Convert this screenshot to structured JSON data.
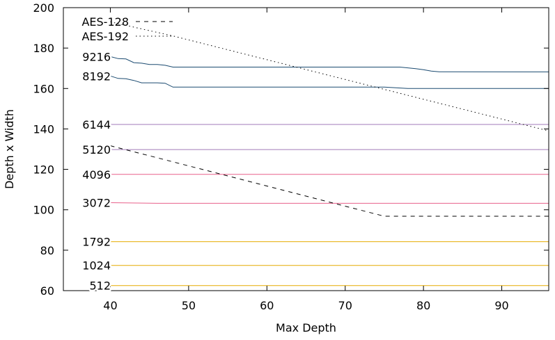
{
  "chart_data": {
    "type": "line",
    "title": "",
    "xlabel": "Max Depth",
    "ylabel": "Depth x Width",
    "xlim": [
      34,
      96
    ],
    "ylim": [
      60,
      200
    ],
    "xticks": [
      40,
      50,
      60,
      70,
      80,
      90
    ],
    "yticks": [
      60,
      80,
      100,
      120,
      140,
      160,
      180,
      200
    ],
    "grid": false,
    "legend": "top-left",
    "series": [
      {
        "name": "512",
        "color": "#e6ac00",
        "dash": "solid",
        "x": [
          40,
          96
        ],
        "y": [
          62.5,
          62.5
        ]
      },
      {
        "name": "1024",
        "color": "#e6ac00",
        "dash": "solid",
        "x": [
          40,
          96
        ],
        "y": [
          72.5,
          72.5
        ]
      },
      {
        "name": "1792",
        "color": "#e6ac00",
        "dash": "solid",
        "x": [
          40,
          96
        ],
        "y": [
          84.2,
          84.2
        ]
      },
      {
        "name": "3072",
        "color": "#e8608a",
        "dash": "solid",
        "x": [
          40,
          46,
          96
        ],
        "y": [
          103.5,
          103.2,
          103.2
        ]
      },
      {
        "name": "4096",
        "color": "#e8608a",
        "dash": "solid",
        "x": [
          40,
          96
        ],
        "y": [
          117.5,
          117.5
        ]
      },
      {
        "name": "5120",
        "color": "#a07ab8",
        "dash": "solid",
        "x": [
          40,
          96
        ],
        "y": [
          129.8,
          129.8
        ]
      },
      {
        "name": "6144",
        "color": "#a07ab8",
        "dash": "solid",
        "x": [
          40,
          96
        ],
        "y": [
          142.2,
          142.2
        ]
      },
      {
        "name": "8192",
        "color": "#1a4a70",
        "dash": "solid",
        "x": [
          40,
          41,
          42,
          43,
          44,
          46,
          47,
          48,
          75,
          78,
          96
        ],
        "y": [
          166.2,
          165,
          164.8,
          164,
          162.8,
          162.8,
          162.6,
          160.7,
          160.7,
          160.0,
          160.0
        ]
      },
      {
        "name": "9216",
        "color": "#1a4a70",
        "dash": "solid",
        "x": [
          40,
          41,
          42,
          43,
          44,
          45,
          46,
          47,
          48,
          77,
          79,
          80,
          81,
          82,
          96
        ],
        "y": [
          175.8,
          174.8,
          174.6,
          172.8,
          172.5,
          171.9,
          171.9,
          171.5,
          170.6,
          170.6,
          169.8,
          169.3,
          168.6,
          168.3,
          168.2
        ]
      },
      {
        "name": "AES-128",
        "color": "#000000",
        "dash": "dashed",
        "x": [
          40,
          75,
          96
        ],
        "y": [
          131.7,
          96.8,
          96.8
        ]
      },
      {
        "name": "AES-192",
        "color": "#000000",
        "dash": "dotted",
        "x": [
          40,
          48,
          96
        ],
        "y": [
          193,
          186,
          139
        ]
      }
    ]
  }
}
